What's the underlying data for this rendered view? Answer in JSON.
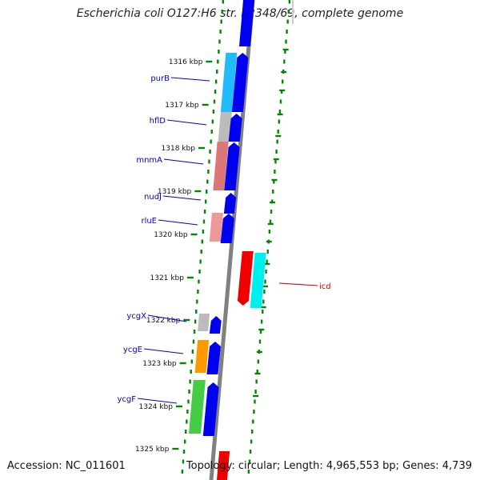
{
  "header": {
    "title": "Escherichia coli O127:H6 str. E2348/69, complete genome"
  },
  "footer": {
    "accession": "Accession: NC_011601",
    "summary": "Topology: circular; Length: 4,965,553 bp; Genes: 4,739"
  },
  "map": {
    "ticks": [
      "1316 kbp",
      "1317 kbp",
      "1318 kbp",
      "1319 kbp",
      "1320 kbp",
      "1321 kbp",
      "1322 kbp",
      "1323 kbp",
      "1324 kbp",
      "1325 kbp"
    ],
    "genes": [
      {
        "name": "purB",
        "color": "#0000cc"
      },
      {
        "name": "hflD",
        "color": "#0000cc"
      },
      {
        "name": "mnmA",
        "color": "#0000cc"
      },
      {
        "name": "nudJ",
        "color": "#0000cc"
      },
      {
        "name": "rluE",
        "color": "#0000cc"
      },
      {
        "name": "icd",
        "color": "#cc0000"
      },
      {
        "name": "ycgX",
        "color": "#0000cc"
      },
      {
        "name": "ycgE",
        "color": "#0000cc"
      },
      {
        "name": "ycgF",
        "color": "#0000cc"
      }
    ],
    "colors": {
      "backbone": "#808080",
      "cds_forward": "#0000ee",
      "cds_reverse": "#ee0000",
      "gc_skew_dots": "#008800",
      "cog_light_blue": "#22bbff",
      "cog_gray": "#bbbbbb",
      "cog_salmon": "#dd7777",
      "cog_pink": "#ee9999",
      "cog_cyan": "#00eeee",
      "cog_orange": "#ff9900",
      "cog_green": "#44cc44"
    }
  }
}
